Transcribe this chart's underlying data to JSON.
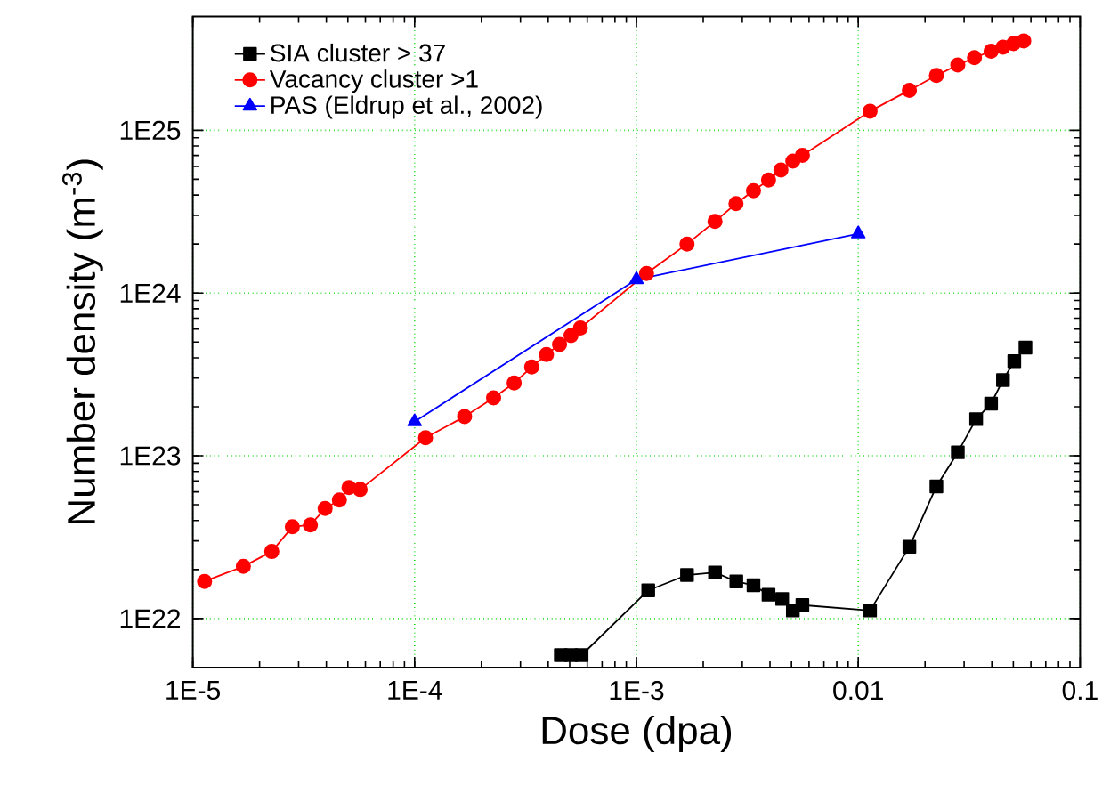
{
  "chart_data": {
    "type": "line",
    "xlabel": "Dose (dpa)",
    "ylabel": "Number density (m$^{-3}$)",
    "log": "xy",
    "grid": true,
    "legend": "top left",
    "xlim": [
      1e-05,
      0.1
    ],
    "ylim": [
      5e+21,
      5e+25
    ],
    "xticks": [
      {
        "value": 1e-05,
        "label": "1E-5"
      },
      {
        "value": 0.0001,
        "label": "1E-4"
      },
      {
        "value": 0.001,
        "label": "1E-3"
      },
      0.01,
      0.1
    ],
    "yticks": [
      {
        "value": 1e+22,
        "label": "1E22"
      },
      {
        "value": 1e+23,
        "label": "1E23"
      },
      {
        "value": 1e+24,
        "label": "1E24"
      },
      {
        "value": 1e+25,
        "label": "1E25"
      }
    ],
    "series": [
      {
        "name": "SIA cluster > 37",
        "color": "#000000",
        "marker": "square",
        "x": [
          0.000456,
          0.000507,
          0.000566,
          0.00113,
          0.00169,
          0.00226,
          0.00282,
          0.00337,
          0.00394,
          0.00454,
          0.00507,
          0.0056,
          0.0113,
          0.017,
          0.0225,
          0.0281,
          0.034,
          0.0397,
          0.0449,
          0.0505,
          0.0567
        ],
        "values": [
          5.96e+21,
          5.96e+21,
          5.96e+21,
          1.49e+22,
          1.85e+22,
          1.92e+22,
          1.69e+22,
          1.6e+22,
          1.4e+22,
          1.32e+22,
          1.12e+22,
          1.21e+22,
          1.12e+22,
          2.76e+22,
          6.48e+22,
          1.05e+23,
          1.68e+23,
          2.09e+23,
          2.92e+23,
          3.81e+23,
          4.62e+23
        ]
      },
      {
        "name": "Vacancy cluster >1",
        "color": "#ff0000",
        "marker": "circle",
        "x": [
          1.13e-05,
          1.69e-05,
          2.27e-05,
          2.81e-05,
          3.39e-05,
          3.95e-05,
          4.58e-05,
          5.06e-05,
          5.68e-05,
          0.000112,
          0.000168,
          0.000227,
          0.000281,
          0.000337,
          0.000393,
          0.00045,
          0.000507,
          0.000559,
          0.00111,
          0.00169,
          0.00226,
          0.00281,
          0.00337,
          0.00394,
          0.00448,
          0.00507,
          0.0056,
          0.0113,
          0.017,
          0.0225,
          0.0281,
          0.0334,
          0.0397,
          0.0449,
          0.0501,
          0.0557
        ],
        "values": [
          1.69e+22,
          2.09e+22,
          2.58e+22,
          3.66e+22,
          3.76e+22,
          4.74e+22,
          5.34e+22,
          6.37e+22,
          6.21e+22,
          1.29e+23,
          1.74e+23,
          2.27e+23,
          2.8e+23,
          3.51e+23,
          4.19e+23,
          4.83e+23,
          5.47e+23,
          6.1e+23,
          1.32e+24,
          2e+24,
          2.75e+24,
          3.54e+24,
          4.25e+24,
          4.94e+24,
          5.7e+24,
          6.46e+24,
          7.02e+24,
          1.31e+25,
          1.76e+25,
          2.17e+25,
          2.52e+25,
          2.79e+25,
          3.06e+25,
          3.24e+25,
          3.41e+25,
          3.54e+25
        ]
      },
      {
        "name": "PAS (Eldrup et al., 2002)",
        "color": "#0000ff",
        "marker": "triangle",
        "x": [
          0.0001,
          0.001,
          0.01
        ],
        "values": [
          1.62e+23,
          1.21e+24,
          2.31e+24
        ]
      }
    ]
  }
}
